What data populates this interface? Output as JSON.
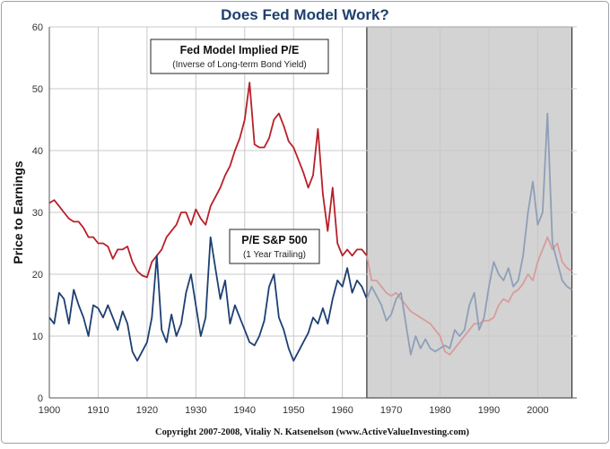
{
  "chart_data": {
    "type": "line",
    "title": "Does Fed Model Work?",
    "xlabel": "",
    "ylabel": "Price to Earnings",
    "xlim": [
      1900,
      2008
    ],
    "ylim": [
      0,
      60
    ],
    "xticks": [
      1900,
      1910,
      1920,
      1930,
      1940,
      1950,
      1960,
      1970,
      1980,
      1990,
      2000
    ],
    "yticks": [
      0,
      10,
      20,
      30,
      40,
      50,
      60
    ],
    "shaded_region": {
      "x_start": 1965,
      "x_end": 2007
    },
    "series": [
      {
        "name": "Fed Model Implied P/E",
        "color": "#b8202a",
        "faded_color": "#d79c9c",
        "x": [
          1900,
          1901,
          1902,
          1903,
          1904,
          1905,
          1906,
          1907,
          1908,
          1909,
          1910,
          1911,
          1912,
          1913,
          1914,
          1915,
          1916,
          1917,
          1918,
          1919,
          1920,
          1921,
          1922,
          1923,
          1924,
          1925,
          1926,
          1927,
          1928,
          1929,
          1930,
          1931,
          1932,
          1933,
          1934,
          1935,
          1936,
          1937,
          1938,
          1939,
          1940,
          1941,
          1942,
          1943,
          1944,
          1945,
          1946,
          1947,
          1948,
          1949,
          1950,
          1951,
          1952,
          1953,
          1954,
          1955,
          1956,
          1957,
          1958,
          1959,
          1960,
          1961,
          1962,
          1963,
          1964,
          1965,
          1966,
          1967,
          1968,
          1969,
          1970,
          1971,
          1972,
          1973,
          1974,
          1975,
          1976,
          1977,
          1978,
          1979,
          1980,
          1981,
          1982,
          1983,
          1984,
          1985,
          1986,
          1987,
          1988,
          1989,
          1990,
          1991,
          1992,
          1993,
          1994,
          1995,
          1996,
          1997,
          1998,
          1999,
          2000,
          2001,
          2002,
          2003,
          2004,
          2005,
          2006,
          2007
        ],
        "values": [
          31.5,
          32,
          31,
          30,
          29,
          28.5,
          28.5,
          27.5,
          26,
          26,
          25,
          25,
          24.5,
          22.5,
          24,
          24,
          24.5,
          22,
          20.5,
          19.8,
          19.5,
          22,
          23,
          24,
          26,
          27,
          28,
          30,
          30,
          28,
          30.5,
          29,
          28,
          31,
          32.5,
          34,
          36,
          37.5,
          40,
          42,
          45,
          51,
          41,
          40.5,
          40.5,
          42,
          45,
          46,
          44,
          41.5,
          40.5,
          38.5,
          36.5,
          34,
          36,
          43.5,
          33,
          27,
          34,
          25,
          23,
          24,
          23,
          24,
          24,
          23,
          19,
          19,
          18,
          17,
          16.5,
          17,
          16,
          15,
          14,
          13.5,
          13,
          12.5,
          12,
          11,
          10,
          7.5,
          7,
          8,
          9,
          10,
          11,
          12,
          12,
          12.5,
          12.5,
          13,
          15,
          16,
          15.5,
          17,
          17.5,
          18.5,
          20,
          19,
          22,
          24,
          26,
          24,
          25,
          22,
          21,
          20.5
        ]
      },
      {
        "name": "P/E S&P 500",
        "color": "#1d3f72",
        "faded_color": "#8e9fb8",
        "x": [
          1900,
          1901,
          1902,
          1903,
          1904,
          1905,
          1906,
          1907,
          1908,
          1909,
          1910,
          1911,
          1912,
          1913,
          1914,
          1915,
          1916,
          1917,
          1918,
          1919,
          1920,
          1921,
          1922,
          1923,
          1924,
          1925,
          1926,
          1927,
          1928,
          1929,
          1930,
          1931,
          1932,
          1933,
          1934,
          1935,
          1936,
          1937,
          1938,
          1939,
          1940,
          1941,
          1942,
          1943,
          1944,
          1945,
          1946,
          1947,
          1948,
          1949,
          1950,
          1951,
          1952,
          1953,
          1954,
          1955,
          1956,
          1957,
          1958,
          1959,
          1960,
          1961,
          1962,
          1963,
          1964,
          1965,
          1966,
          1967,
          1968,
          1969,
          1970,
          1971,
          1972,
          1973,
          1974,
          1975,
          1976,
          1977,
          1978,
          1979,
          1980,
          1981,
          1982,
          1983,
          1984,
          1985,
          1986,
          1987,
          1988,
          1989,
          1990,
          1991,
          1992,
          1993,
          1994,
          1995,
          1996,
          1997,
          1998,
          1999,
          2000,
          2001,
          2002,
          2003,
          2004,
          2005,
          2006,
          2007
        ],
        "values": [
          13,
          12,
          17,
          16,
          12,
          17.5,
          15,
          13,
          10,
          15,
          14.5,
          13,
          15,
          13,
          11,
          14,
          12,
          7.5,
          6,
          7.5,
          9,
          13,
          23,
          11,
          9,
          13.5,
          10,
          12,
          17,
          20,
          15,
          10,
          13,
          26,
          21,
          16,
          19,
          12,
          15,
          13,
          11,
          9,
          8.5,
          10,
          12.5,
          18,
          20,
          13,
          11,
          8,
          6,
          7.5,
          9,
          10.5,
          13,
          12,
          14.5,
          12,
          16,
          19,
          18,
          21,
          17,
          19,
          18,
          16,
          18,
          16.5,
          15,
          12.5,
          13.5,
          16,
          17,
          12,
          7,
          10,
          8,
          9.5,
          8,
          7.5,
          8,
          8.5,
          8,
          11,
          10,
          11,
          15,
          17,
          11,
          13,
          18,
          22,
          20,
          19,
          21,
          18,
          19,
          23,
          30,
          35,
          28,
          30,
          46,
          25,
          22,
          19,
          18,
          17.5
        ]
      }
    ],
    "annotations": [
      {
        "title": "Fed Model Implied P/E",
        "subtitle": "(Inverse of Long-term Bond Yield)"
      },
      {
        "title": "P/E S&P 500",
        "subtitle": "(1 Year Trailing)"
      }
    ],
    "credit": "Copyright 2007-2008, Vitaliy N. Katsenelson (www.ActiveValueInvesting.com)"
  }
}
